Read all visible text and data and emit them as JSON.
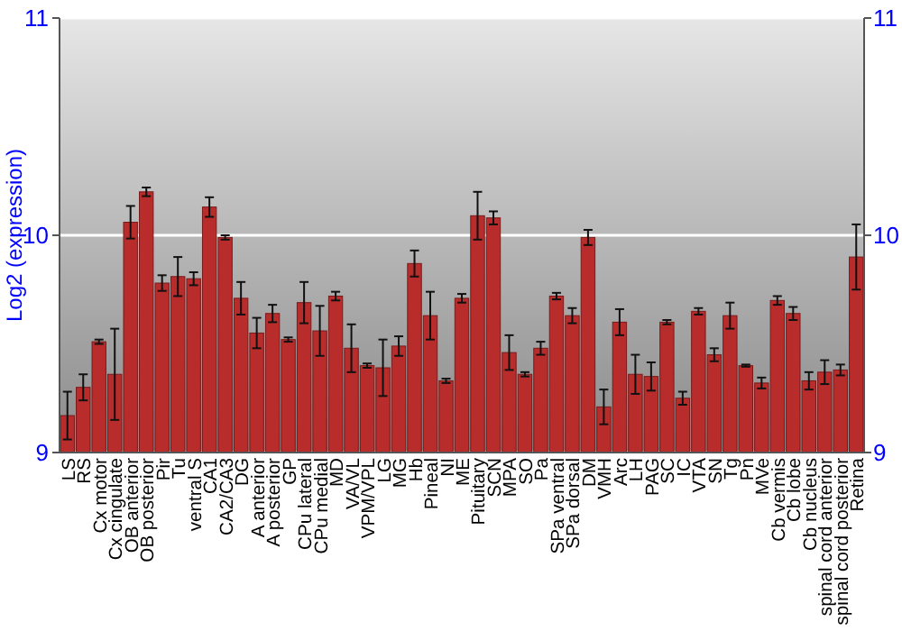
{
  "chart_data": {
    "type": "bar",
    "ylabel": "Log2 (expression)",
    "categories": [
      "LS",
      "RS",
      "Cx motor",
      "Cx cingulate",
      "OB anterior",
      "OB posterior",
      "Pir",
      "Tu",
      "ventral S",
      "CA1",
      "CA2/CA3",
      "DG",
      "A anterior",
      "A posterior",
      "GP",
      "CPu lateral",
      "CPu medial",
      "MD",
      "VA/VL",
      "VPM/VPL",
      "LG",
      "MG",
      "Hb",
      "Pineal",
      "NI",
      "ME",
      "Pituitary",
      "SCN",
      "MPA",
      "SO",
      "Pa",
      "SPa ventral",
      "SPa dorsal",
      "DM",
      "VMH",
      "Arc",
      "LH",
      "PAG",
      "SC",
      "IC",
      "VTA",
      "SN",
      "Tg",
      "Pn",
      "MVe",
      "Cb vermis",
      "Cb lobe",
      "Cb nucleus",
      "spinal cord anterior",
      "spinal cord posterior",
      "Retina"
    ],
    "values": [
      9.17,
      9.3,
      9.51,
      9.36,
      10.06,
      10.2,
      9.78,
      9.81,
      9.8,
      10.13,
      9.99,
      9.71,
      9.55,
      9.64,
      9.52,
      9.69,
      9.56,
      9.72,
      9.48,
      9.4,
      9.39,
      9.49,
      9.87,
      9.63,
      9.33,
      9.71,
      10.09,
      10.08,
      9.46,
      9.36,
      9.48,
      9.72,
      9.63,
      9.99,
      9.21,
      9.6,
      9.36,
      9.35,
      9.6,
      9.25,
      9.65,
      9.45,
      9.63,
      9.4,
      9.32,
      9.7,
      9.64,
      9.33,
      9.37,
      9.38,
      9.9
    ],
    "errors": [
      0.11,
      0.06,
      0.01,
      0.21,
      0.075,
      0.02,
      0.036,
      0.09,
      0.03,
      0.045,
      0.01,
      0.075,
      0.07,
      0.04,
      0.01,
      0.095,
      0.115,
      0.02,
      0.11,
      0.01,
      0.13,
      0.045,
      0.06,
      0.11,
      0.01,
      0.02,
      0.11,
      0.03,
      0.08,
      0.01,
      0.03,
      0.015,
      0.035,
      0.035,
      0.08,
      0.06,
      0.09,
      0.065,
      0.01,
      0.03,
      0.015,
      0.03,
      0.06,
      0.005,
      0.025,
      0.02,
      0.03,
      0.04,
      0.055,
      0.025,
      0.15
    ],
    "color": "#b82c2c",
    "ylim": [
      9,
      11
    ],
    "yticks": [
      9,
      10,
      11
    ],
    "y2lim": [
      9,
      11
    ],
    "y2ticks": [
      9,
      10,
      11
    ],
    "grid": "y"
  }
}
